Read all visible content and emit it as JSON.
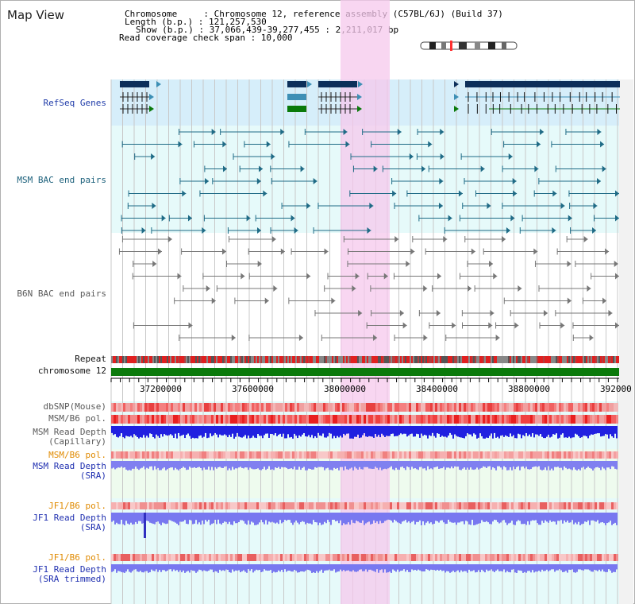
{
  "title": "Map View",
  "info": {
    "chromosome": "Chromosome     : Chromosome 12, reference assembly (C57BL/6J) (Build 37)",
    "length": "Length (b.p.) : 121,257,530",
    "show": "Show (b.p.) : 37,066,439-39,277,455 : 2,211,017 bp",
    "span": "Read coverage check span : 10,000"
  },
  "tracks": {
    "refseq": "RefSeq Genes",
    "msm_bac": "MSM BAC end pairs",
    "b6n_bac": "B6N BAC end pairs",
    "repeat": "Repeat",
    "chromosome": "chromosome 12",
    "dbsnp": "dbSNP(Mouse)",
    "msm_pol": "MSM/B6 pol.",
    "msm_depth_cap_1": "MSM Read Depth",
    "msm_depth_cap_2": "(Capillary)",
    "msm_pol2": "MSM/B6 pol.",
    "msm_depth_sra_1": "MSM Read Depth",
    "msm_depth_sra_2": "(SRA)",
    "jf1_pol": "JF1/B6 pol.",
    "jf1_depth_1": "JF1 Read Depth",
    "jf1_depth_2": "(SRA)",
    "jf1_pol2": "JF1/B6 pol.",
    "jf1_trim_1": "JF1 Read Depth",
    "jf1_trim_2": "(SRA trimmed)"
  },
  "axis_ticks": [
    "37200000",
    "37600000",
    "38000000",
    "38400000",
    "38800000",
    "392000"
  ],
  "colors": {
    "highlight": "#f8d0ee",
    "refseq_bg": "#d4eefa",
    "bac_bg": "#e6fafa",
    "sra_bg": "#eefbee",
    "gene_dark": "#0c2f5a",
    "chromosome_bar": "#0b7a0b"
  }
}
